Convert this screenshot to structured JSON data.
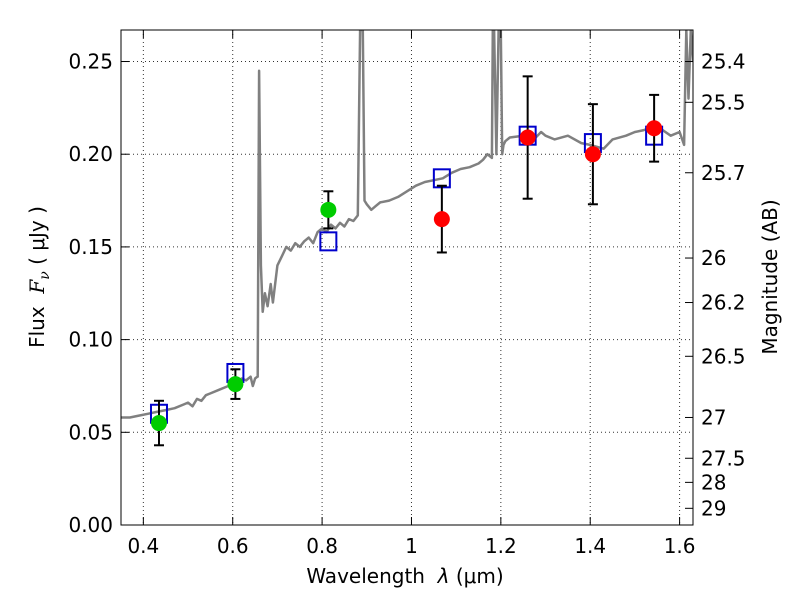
{
  "chart_data": {
    "type": "scatter",
    "title": "",
    "xlabel": {
      "prefix": "Wavelength  ",
      "symbol": "λ",
      "unit": "(μm)"
    },
    "ylabel": {
      "prefix": "Flux  ",
      "symbol": "F",
      "subscript": "ν",
      "unit": "(  μJy )"
    },
    "ylabel_right": "Magnitude (AB)",
    "xlim": [
      0.35,
      1.63
    ],
    "ylim": [
      0.0,
      0.267
    ],
    "grid": true,
    "x_ticks": [
      0.4,
      0.6,
      0.8,
      1.0,
      1.2,
      1.4,
      1.6
    ],
    "x_tick_labels": [
      "0.4",
      "0.6",
      "0.8",
      "1",
      "1.2",
      "1.4",
      "1.6"
    ],
    "y_ticks": [
      0.0,
      0.05,
      0.1,
      0.15,
      0.2,
      0.25
    ],
    "y_tick_labels": [
      "0.00",
      "0.05",
      "0.10",
      "0.15",
      "0.20",
      "0.25"
    ],
    "magnitude_ticks": [
      {
        "label": "25.4",
        "flux": 0.25
      },
      {
        "label": "25.5",
        "flux": 0.228
      },
      {
        "label": "25.7",
        "flux": 0.19
      },
      {
        "label": "26",
        "flux": 0.144
      },
      {
        "label": "26.2",
        "flux": 0.12
      },
      {
        "label": "26.5",
        "flux": 0.091
      },
      {
        "label": "27",
        "flux": 0.058
      },
      {
        "label": "27.5",
        "flux": 0.036
      },
      {
        "label": "28",
        "flux": 0.023
      },
      {
        "label": "29",
        "flux": 0.009
      }
    ],
    "colors": {
      "model": "#808080",
      "green_points": "#00cc00",
      "red_points": "#ff0000",
      "model_photometry": "#0000cc",
      "error_bars": "#000000"
    },
    "series": [
      {
        "name": "green photometry",
        "marker": "circle",
        "color": "#00cc00",
        "points": [
          {
            "x": 0.435,
            "y": 0.055,
            "err": 0.012
          },
          {
            "x": 0.606,
            "y": 0.076,
            "err": 0.008
          },
          {
            "x": 0.814,
            "y": 0.17,
            "err": 0.01
          }
        ]
      },
      {
        "name": "red photometry",
        "marker": "circle",
        "color": "#ff0000",
        "points": [
          {
            "x": 1.068,
            "y": 0.165,
            "err": 0.018
          },
          {
            "x": 1.26,
            "y": 0.209,
            "err": 0.033
          },
          {
            "x": 1.406,
            "y": 0.2,
            "err": 0.027
          },
          {
            "x": 1.543,
            "y": 0.214,
            "err": 0.018
          }
        ]
      },
      {
        "name": "model photometry",
        "marker": "square",
        "color": "#0000cc",
        "points": [
          {
            "x": 0.435,
            "y": 0.06
          },
          {
            "x": 0.606,
            "y": 0.082
          },
          {
            "x": 0.814,
            "y": 0.153
          },
          {
            "x": 1.068,
            "y": 0.187
          },
          {
            "x": 1.26,
            "y": 0.21
          },
          {
            "x": 1.406,
            "y": 0.206
          },
          {
            "x": 1.543,
            "y": 0.21
          }
        ]
      },
      {
        "name": "model spectrum",
        "marker": "line",
        "color": "#808080",
        "x": [
          0.35,
          0.37,
          0.39,
          0.41,
          0.43,
          0.45,
          0.47,
          0.49,
          0.5,
          0.51,
          0.52,
          0.53,
          0.54,
          0.55,
          0.57,
          0.59,
          0.6,
          0.61,
          0.62,
          0.63,
          0.64,
          0.645,
          0.65,
          0.655,
          0.656,
          0.659,
          0.663,
          0.667,
          0.672,
          0.678,
          0.685,
          0.69,
          0.7,
          0.71,
          0.72,
          0.73,
          0.74,
          0.75,
          0.76,
          0.77,
          0.78,
          0.79,
          0.8,
          0.81,
          0.82,
          0.83,
          0.84,
          0.85,
          0.86,
          0.87,
          0.88,
          0.885,
          0.888,
          0.891,
          0.895,
          0.9,
          0.91,
          0.92,
          0.93,
          0.95,
          0.97,
          0.99,
          1.01,
          1.03,
          1.05,
          1.07,
          1.09,
          1.11,
          1.13,
          1.15,
          1.16,
          1.17,
          1.18,
          1.182,
          1.185,
          1.19,
          1.195,
          1.2,
          1.203,
          1.206,
          1.21,
          1.22,
          1.25,
          1.27,
          1.29,
          1.3,
          1.32,
          1.35,
          1.38,
          1.4,
          1.43,
          1.45,
          1.48,
          1.5,
          1.52,
          1.55,
          1.58,
          1.6,
          1.61,
          1.615,
          1.62,
          1.625,
          1.63
        ],
        "y": [
          0.058,
          0.058,
          0.059,
          0.06,
          0.061,
          0.062,
          0.063,
          0.065,
          0.066,
          0.064,
          0.068,
          0.067,
          0.07,
          0.071,
          0.073,
          0.075,
          0.078,
          0.077,
          0.079,
          0.078,
          0.08,
          0.075,
          0.079,
          0.08,
          0.08,
          0.245,
          0.14,
          0.115,
          0.125,
          0.118,
          0.13,
          0.12,
          0.14,
          0.145,
          0.15,
          0.148,
          0.152,
          0.15,
          0.153,
          0.155,
          0.152,
          0.158,
          0.16,
          0.158,
          0.162,
          0.16,
          0.163,
          0.161,
          0.165,
          0.164,
          0.167,
          0.267,
          0.267,
          0.267,
          0.175,
          0.173,
          0.17,
          0.172,
          0.174,
          0.175,
          0.177,
          0.18,
          0.183,
          0.185,
          0.186,
          0.187,
          0.19,
          0.192,
          0.193,
          0.195,
          0.197,
          0.2,
          0.198,
          0.267,
          0.267,
          0.2,
          0.267,
          0.267,
          0.2,
          0.205,
          0.207,
          0.209,
          0.21,
          0.207,
          0.212,
          0.21,
          0.208,
          0.21,
          0.206,
          0.205,
          0.203,
          0.208,
          0.21,
          0.212,
          0.213,
          0.215,
          0.21,
          0.212,
          0.205,
          0.267,
          0.23,
          0.267,
          0.25
        ]
      }
    ]
  }
}
